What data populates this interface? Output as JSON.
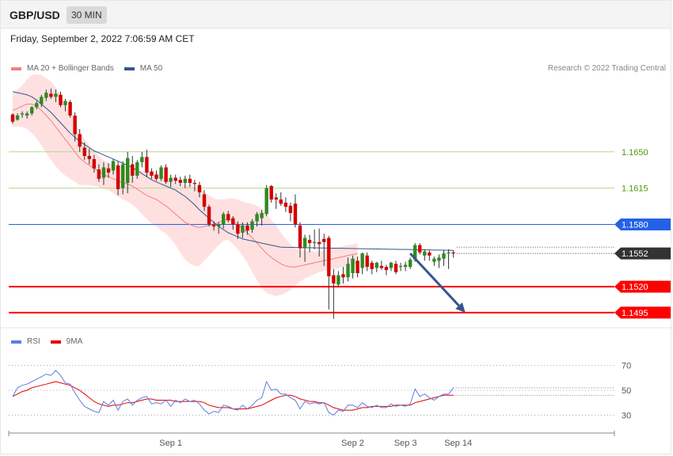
{
  "header": {
    "symbol": "GBP/USD",
    "timeframe": "30 MIN"
  },
  "timestamp": "Friday, September 2, 2022 7:06:59 AM CET",
  "credit": "Research © 2022 Trading Central",
  "colors": {
    "up": "#2e8b1f",
    "down": "#d40000",
    "ma20": "#f08080",
    "band": "#ffdada",
    "ma50": "#34568c",
    "support": "#ff0000",
    "resistance_green": "#b5d98a",
    "pivot": "#2461e6",
    "rsi": "#5b7fe0",
    "rsi_ma": "#e00000",
    "arrow": "#34568c"
  },
  "chart_data": [
    {
      "type": "line",
      "name": "price",
      "legend": [
        {
          "label": "MA 20 + Bollinger Bands",
          "color": "#f08080"
        },
        {
          "label": "MA 50",
          "color": "#34568c"
        }
      ],
      "ylim": [
        1.1488,
        1.1717
      ],
      "x_ticks": [
        {
          "label": "Sep 1",
          "index": 33
        },
        {
          "label": "Sep 2",
          "index": 71
        },
        {
          "label": "Sep 3",
          "index": 82
        },
        {
          "label": "Sep 14",
          "index": 93
        }
      ],
      "levels": [
        {
          "label": "1.1650",
          "value": 1.165,
          "kind": "resistance",
          "color": "#b5d98a",
          "text_color": "#4e9a06"
        },
        {
          "label": "1.1615",
          "value": 1.1615,
          "kind": "resistance",
          "color": "#b5d98a",
          "text_color": "#4e9a06"
        },
        {
          "label": "1.1580",
          "value": 1.158,
          "kind": "pivot",
          "color": "#2461e6",
          "text_color": "#ffffff",
          "box": "#2461e6"
        },
        {
          "label": "1.1552",
          "value": 1.1552,
          "kind": "last",
          "color": "#222222",
          "text_color": "#ffffff",
          "box": "#333333"
        },
        {
          "label": "1.1520",
          "value": 1.152,
          "kind": "support",
          "color": "#ff0000",
          "text_color": "#ffffff",
          "box": "#ff0000"
        },
        {
          "label": "1.1495",
          "value": 1.1495,
          "kind": "support",
          "color": "#ff0000",
          "text_color": "#ffffff",
          "box": "#ff0000"
        }
      ],
      "forecast_arrow": {
        "from": [
          83,
          1.1552
        ],
        "to": [
          94.5,
          1.1495
        ]
      },
      "ohlc": [
        [
          1.1686,
          1.1687,
          1.1677,
          1.1679
        ],
        [
          1.1681,
          1.1687,
          1.168,
          1.1685
        ],
        [
          1.1686,
          1.1689,
          1.1683,
          1.1687
        ],
        [
          1.1685,
          1.1689,
          1.1682,
          1.1687
        ],
        [
          1.1687,
          1.1694,
          1.1685,
          1.1693
        ],
        [
          1.1693,
          1.1699,
          1.1691,
          1.1697
        ],
        [
          1.1696,
          1.1705,
          1.1693,
          1.1703
        ],
        [
          1.1702,
          1.171,
          1.1699,
          1.1707
        ],
        [
          1.1706,
          1.1711,
          1.1701,
          1.1703
        ],
        [
          1.1703,
          1.171,
          1.1698,
          1.1706
        ],
        [
          1.1705,
          1.1708,
          1.1693,
          1.1695
        ],
        [
          1.1695,
          1.1701,
          1.1689,
          1.1699
        ],
        [
          1.1698,
          1.17,
          1.1683,
          1.1685
        ],
        [
          1.1685,
          1.1688,
          1.166,
          1.1667
        ],
        [
          1.1667,
          1.1672,
          1.165,
          1.1655
        ],
        [
          1.1654,
          1.1659,
          1.1642,
          1.1646
        ],
        [
          1.1646,
          1.1653,
          1.1638,
          1.1643
        ],
        [
          1.1643,
          1.1647,
          1.163,
          1.1634
        ],
        [
          1.1633,
          1.1638,
          1.1621,
          1.1624
        ],
        [
          1.1625,
          1.164,
          1.1618,
          1.1635
        ],
        [
          1.1634,
          1.1639,
          1.1625,
          1.163
        ],
        [
          1.1632,
          1.1643,
          1.1628,
          1.1641
        ],
        [
          1.1637,
          1.1641,
          1.1608,
          1.1614
        ],
        [
          1.1615,
          1.1641,
          1.1609,
          1.1638
        ],
        [
          1.162,
          1.165,
          1.161,
          1.1644
        ],
        [
          1.1638,
          1.1646,
          1.162,
          1.1627
        ],
        [
          1.1627,
          1.1642,
          1.1624,
          1.164
        ],
        [
          1.164,
          1.165,
          1.1635,
          1.1645
        ],
        [
          1.1645,
          1.1652,
          1.1626,
          1.163
        ],
        [
          1.1631,
          1.1634,
          1.1624,
          1.1627
        ],
        [
          1.1628,
          1.1632,
          1.1622,
          1.1624
        ],
        [
          1.1624,
          1.1637,
          1.1622,
          1.1635
        ],
        [
          1.1635,
          1.1638,
          1.1619,
          1.1621
        ],
        [
          1.1621,
          1.1628,
          1.1616,
          1.1625
        ],
        [
          1.1625,
          1.1628,
          1.1619,
          1.1622
        ],
        [
          1.1623,
          1.1626,
          1.1617,
          1.162
        ],
        [
          1.162,
          1.1627,
          1.1615,
          1.1624
        ],
        [
          1.1624,
          1.1628,
          1.1616,
          1.162
        ],
        [
          1.162,
          1.1623,
          1.1612,
          1.1619
        ],
        [
          1.1618,
          1.1621,
          1.1606,
          1.1611
        ],
        [
          1.1609,
          1.1613,
          1.1593,
          1.1597
        ],
        [
          1.1597,
          1.1599,
          1.1578,
          1.158
        ],
        [
          1.158,
          1.1583,
          1.1574,
          1.1578
        ],
        [
          1.1578,
          1.1582,
          1.1571,
          1.158
        ],
        [
          1.158,
          1.1592,
          1.1576,
          1.159
        ],
        [
          1.159,
          1.1593,
          1.1582,
          1.1584
        ],
        [
          1.1586,
          1.1588,
          1.1575,
          1.158
        ],
        [
          1.158,
          1.1583,
          1.1566,
          1.1571
        ],
        [
          1.1572,
          1.1582,
          1.1567,
          1.1579
        ],
        [
          1.1579,
          1.1582,
          1.157,
          1.1574
        ],
        [
          1.1575,
          1.1585,
          1.1572,
          1.1583
        ],
        [
          1.1583,
          1.1592,
          1.1578,
          1.159
        ],
        [
          1.1586,
          1.1594,
          1.1579,
          1.1591
        ],
        [
          1.159,
          1.1618,
          1.1588,
          1.1615
        ],
        [
          1.1617,
          1.1618,
          1.1601,
          1.1604
        ],
        [
          1.1606,
          1.161,
          1.1595,
          1.1604
        ],
        [
          1.1604,
          1.1611,
          1.1598,
          1.16
        ],
        [
          1.1601,
          1.1606,
          1.1592,
          1.1597
        ],
        [
          1.1598,
          1.1601,
          1.1583,
          1.1591
        ],
        [
          1.16,
          1.1609,
          1.1577,
          1.158
        ],
        [
          1.1579,
          1.1582,
          1.1548,
          1.1557
        ],
        [
          1.1557,
          1.157,
          1.1544,
          1.1567
        ],
        [
          1.1565,
          1.157,
          1.1553,
          1.1562
        ],
        [
          1.1562,
          1.1575,
          1.1556,
          1.1563
        ],
        [
          1.1563,
          1.1576,
          1.1549,
          1.1561
        ],
        [
          1.1566,
          1.1571,
          1.154,
          1.1563
        ],
        [
          1.1567,
          1.1569,
          1.1498,
          1.153
        ],
        [
          1.1531,
          1.1537,
          1.1489,
          1.1523
        ],
        [
          1.1522,
          1.1535,
          1.152,
          1.1531
        ],
        [
          1.1532,
          1.1539,
          1.1523,
          1.1529
        ],
        [
          1.1529,
          1.1548,
          1.1525,
          1.1542
        ],
        [
          1.1533,
          1.155,
          1.1528,
          1.1547
        ],
        [
          1.1545,
          1.1549,
          1.1529,
          1.1533
        ],
        [
          1.1538,
          1.1553,
          1.1532,
          1.1552
        ],
        [
          1.155,
          1.1553,
          1.1535,
          1.1539
        ],
        [
          1.1543,
          1.1545,
          1.1532,
          1.1537
        ],
        [
          1.1538,
          1.1544,
          1.1534,
          1.1543
        ],
        [
          1.154,
          1.1545,
          1.1536,
          1.1538
        ],
        [
          1.1539,
          1.1541,
          1.1531,
          1.1536
        ],
        [
          1.1538,
          1.1544,
          1.1535,
          1.1543
        ],
        [
          1.1542,
          1.1545,
          1.1532,
          1.1534
        ],
        [
          1.1539,
          1.1543,
          1.1535,
          1.154
        ],
        [
          1.1539,
          1.1544,
          1.1535,
          1.1541
        ],
        [
          1.1539,
          1.1548,
          1.1537,
          1.1546
        ],
        [
          1.1546,
          1.1562,
          1.1544,
          1.156
        ],
        [
          1.156,
          1.1562,
          1.1551,
          1.1553
        ],
        [
          1.155,
          1.1556,
          1.1545,
          1.1554
        ],
        [
          1.1553,
          1.1555,
          1.1545,
          1.155
        ],
        [
          1.1544,
          1.1549,
          1.154,
          1.1547
        ],
        [
          1.1545,
          1.1551,
          1.1538,
          1.1548
        ],
        [
          1.1547,
          1.1555,
          1.154,
          1.1552
        ],
        [
          1.1552,
          1.1556,
          1.1537,
          1.1553
        ],
        [
          1.1553,
          1.1555,
          1.1548,
          1.1552
        ]
      ],
      "ma20": [
        1.169,
        1.1692,
        1.1694,
        1.1696,
        1.1696,
        1.1694,
        1.169,
        1.1685,
        1.168,
        1.1674,
        1.1668,
        1.1662,
        1.1656,
        1.165,
        1.1644,
        1.164,
        1.1637,
        1.1634,
        1.1631,
        1.1628,
        1.1626,
        1.1624,
        1.1622,
        1.162,
        1.1619,
        1.1617,
        1.1614,
        1.1611,
        1.1608,
        1.1606,
        1.1604,
        1.1601,
        1.1598,
        1.1594,
        1.159,
        1.1586,
        1.1582,
        1.158,
        1.1578,
        1.1577,
        1.1578,
        1.1579,
        1.158,
        1.1582,
        1.1584,
        1.1585,
        1.1583,
        1.158,
        1.1576,
        1.1572,
        1.1567,
        1.1562,
        1.1557,
        1.1552,
        1.1548,
        1.1545,
        1.1542,
        1.154,
        1.1539,
        1.1539,
        1.154,
        1.1541,
        1.1542,
        1.1543,
        1.1544,
        1.1545,
        1.1546,
        1.1547,
        1.1548,
        1.1549,
        1.155,
        1.1551,
        1.1552
      ],
      "ma20_start": 0,
      "band_width": [
        0.0016,
        0.0018,
        0.002,
        0.0024,
        0.0028,
        0.0031,
        0.0034,
        0.0036,
        0.0038,
        0.0038,
        0.0037,
        0.0035,
        0.0032,
        0.0029,
        0.0026,
        0.0022,
        0.0019,
        0.0017,
        0.0015,
        0.0014,
        0.0013,
        0.0014,
        0.0015,
        0.0016,
        0.0017,
        0.0018,
        0.0019,
        0.0021,
        0.0023,
        0.0025,
        0.0026,
        0.0027,
        0.0027,
        0.0028,
        0.003,
        0.0033,
        0.0036,
        0.0038,
        0.0038,
        0.0037,
        0.0033,
        0.0029,
        0.0025,
        0.0022,
        0.002,
        0.002,
        0.0022,
        0.0024,
        0.0026,
        0.0029,
        0.0033,
        0.0036,
        0.0038,
        0.0038,
        0.0036,
        0.0034,
        0.003,
        0.0026,
        0.0022,
        0.0018,
        0.0015,
        0.0013,
        0.0012,
        0.0011,
        0.001,
        0.001,
        0.001,
        0.001,
        0.001,
        0.001,
        0.001,
        0.001,
        0.001
      ],
      "ma50": [
        1.1708,
        1.1707,
        1.1706,
        1.1705,
        1.1703,
        1.17,
        1.1696,
        1.1692,
        1.1688,
        1.1683,
        1.1678,
        1.1673,
        1.1668,
        1.1664,
        1.166,
        1.1657,
        1.1654,
        1.1651,
        1.1649,
        1.1647,
        1.1645,
        1.1643,
        1.1641,
        1.1639,
        1.1637,
        1.1635,
        1.1632,
        1.1629,
        1.1626,
        1.1623,
        1.1621,
        1.1619,
        1.1617,
        1.1615,
        1.1613,
        1.161,
        1.1607,
        1.1603,
        1.1599,
        1.1594,
        1.159,
        1.1586,
        1.1582,
        1.1578,
        1.1575,
        1.1572,
        1.157,
        1.1568,
        1.1566,
        1.1565,
        1.1564,
        1.1563,
        1.1562,
        1.1561,
        1.156,
        1.1559,
        1.1558
      ],
      "ma50_start": 0
    },
    {
      "type": "line",
      "name": "rsi",
      "legend": [
        {
          "label": "RSI",
          "color": "#5b7fe0"
        },
        {
          "label": "9MA",
          "color": "#e00000"
        }
      ],
      "ylim": [
        20,
        80
      ],
      "gridlines": [
        {
          "label": "70",
          "value": 70
        },
        {
          "label": "50",
          "value": 50
        },
        {
          "label": "30",
          "value": 30
        }
      ],
      "rsi": [
        45,
        52,
        54,
        55,
        57,
        59,
        61,
        63,
        62,
        66,
        62,
        56,
        55,
        48,
        42,
        37,
        35,
        33,
        32,
        41,
        38,
        42,
        34,
        41,
        43,
        38,
        42,
        44,
        45,
        39,
        40,
        39,
        42,
        37,
        42,
        40,
        43,
        41,
        42,
        39,
        34,
        31,
        33,
        32,
        38,
        37,
        35,
        34,
        38,
        35,
        38,
        42,
        44,
        57,
        50,
        51,
        47,
        47,
        44,
        42,
        35,
        41,
        39,
        40,
        39,
        40,
        32,
        30,
        34,
        33,
        38,
        38,
        36,
        40,
        37,
        36,
        38,
        36,
        36,
        39,
        37,
        38,
        37,
        39,
        51,
        45,
        47,
        44,
        42,
        45,
        47,
        47,
        52
      ],
      "rsi9": [
        45,
        47,
        49,
        50,
        52,
        53,
        54,
        55,
        56,
        57,
        56,
        55,
        54,
        52,
        50,
        47,
        44,
        41,
        39,
        38,
        37,
        38,
        38,
        39,
        40,
        40,
        41,
        42,
        43,
        43,
        42,
        42,
        42,
        42,
        41,
        41,
        41,
        41,
        41,
        41,
        40,
        38,
        37,
        36,
        36,
        36,
        35,
        35,
        35,
        35,
        36,
        37,
        38,
        40,
        42,
        44,
        45,
        46,
        46,
        45,
        43,
        42,
        41,
        41,
        40,
        40,
        38,
        36,
        35,
        34,
        34,
        34,
        35,
        36,
        36,
        37,
        37,
        37,
        37,
        37,
        38,
        38,
        38,
        38,
        40,
        41,
        42,
        43,
        44,
        45,
        46,
        46,
        46
      ]
    }
  ]
}
